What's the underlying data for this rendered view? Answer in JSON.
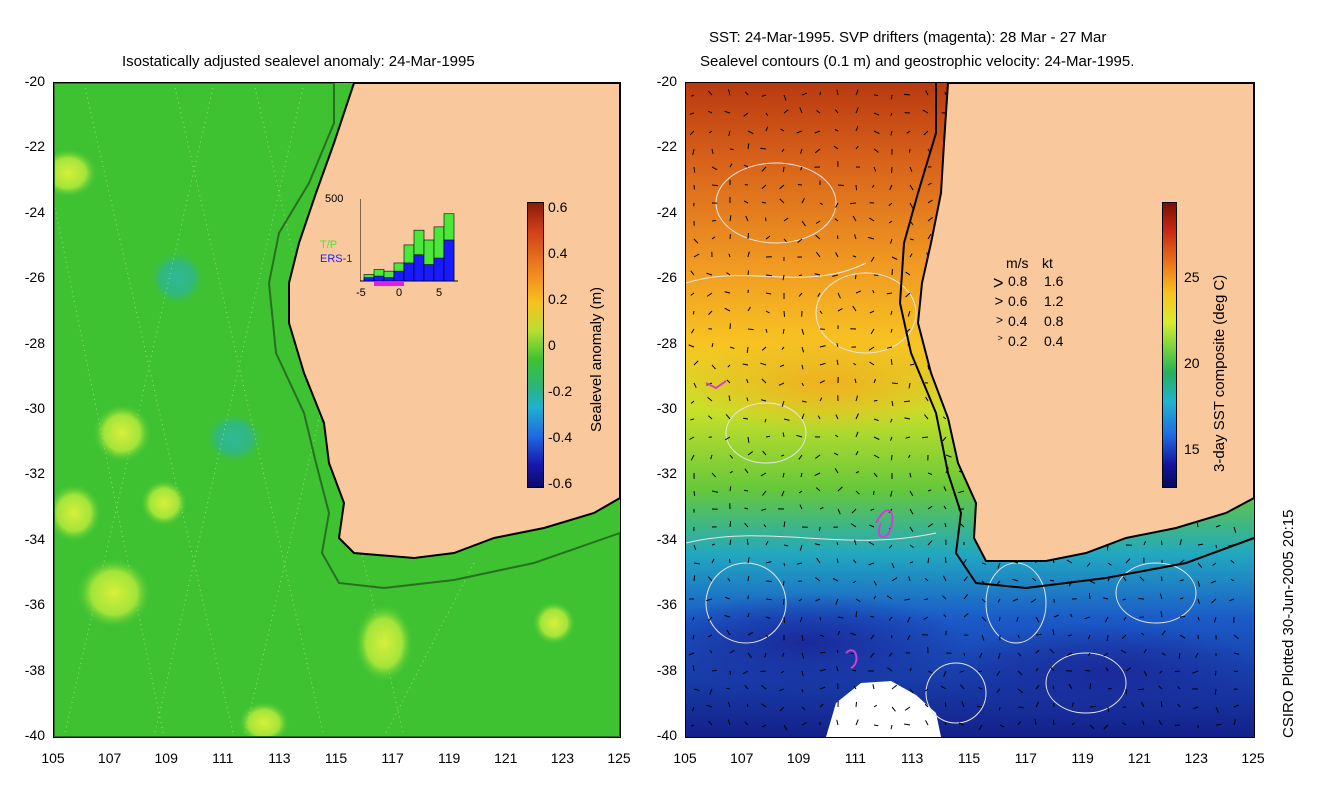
{
  "left_panel": {
    "title": "Isostatically adjusted sealevel anomaly: 24-Mar-1995",
    "y_ticks": [
      "-20",
      "-22",
      "-24",
      "-26",
      "-28",
      "-30",
      "-32",
      "-34",
      "-36",
      "-38",
      "-40"
    ],
    "x_ticks": [
      "105",
      "107",
      "109",
      "111",
      "113",
      "115",
      "117",
      "119",
      "121",
      "123",
      "125"
    ],
    "colorbar": {
      "label": "Sealevel anomaly (m)",
      "ticks": [
        "0.6",
        "0.4",
        "0.2",
        "0",
        "-0.2",
        "-0.4",
        "-0.6"
      ]
    },
    "inset": {
      "y_max_label": "500",
      "x_ticks": [
        "-5",
        "0",
        "5"
      ],
      "legend_tp": "T/P",
      "legend_ers": "ERS-1",
      "tp_values": [
        40,
        70,
        60,
        110,
        220,
        310,
        250,
        330,
        410
      ],
      "ers_values": [
        20,
        30,
        20,
        60,
        110,
        160,
        100,
        140,
        250
      ]
    },
    "colors": {
      "ocean": "#3ec232",
      "land": "#f9c89c"
    }
  },
  "right_panel": {
    "title_line1": "SST: 24-Mar-1995. SVP drifters (magenta): 28 Mar - 27 Mar",
    "title_line2": "Sealevel contours (0.1 m) and geostrophic velocity: 24-Mar-1995.",
    "y_ticks": [
      "-20",
      "-22",
      "-24",
      "-26",
      "-28",
      "-30",
      "-32",
      "-34",
      "-36",
      "-38",
      "-40"
    ],
    "x_ticks": [
      "105",
      "107",
      "109",
      "111",
      "113",
      "115",
      "117",
      "119",
      "121",
      "123",
      "125"
    ],
    "colorbar": {
      "label": "3-day SST composite (deg C)",
      "ticks": [
        "25",
        "20",
        "15"
      ]
    },
    "velocity_legend": {
      "header_ms": "m/s",
      "header_kt": "kt",
      "rows": [
        {
          "ms": "0.8",
          "kt": "1.6"
        },
        {
          "ms": "0.6",
          "kt": "1.2"
        },
        {
          "ms": "0.4",
          "kt": "0.8"
        },
        {
          "ms": "0.2",
          "kt": "0.4"
        }
      ]
    },
    "colors": {
      "land": "#f9c89c"
    }
  },
  "footer": {
    "credit": "CSIRO Plotted 30-Jun-2005 20:15"
  }
}
